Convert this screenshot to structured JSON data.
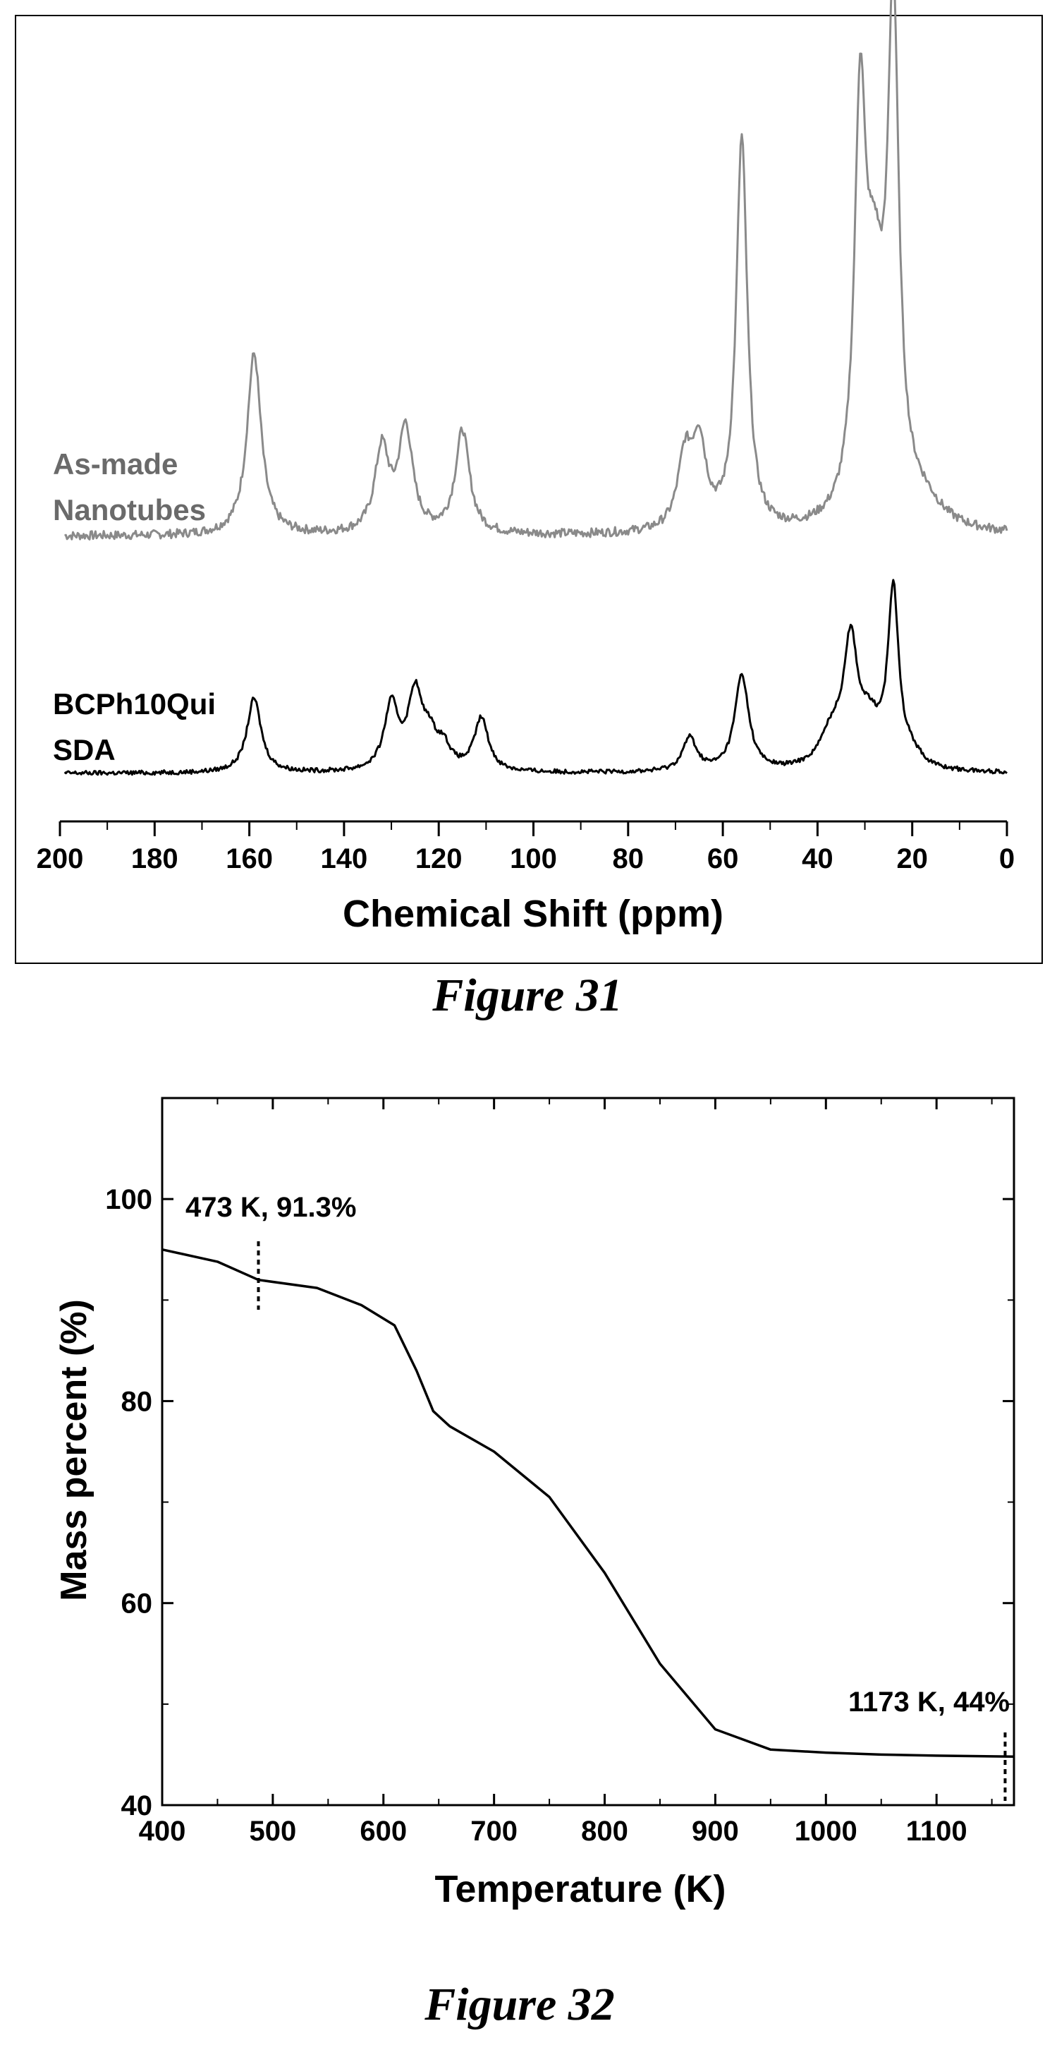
{
  "charts": {
    "nmr": {
      "xlabel": "Chemical Shift (ppm)",
      "caption": "Figure 31"
    },
    "tga": {
      "xlabel": "Temperature (K)",
      "ylabel": "Mass percent (%)",
      "caption": "Figure 32",
      "annotations": [
        {
          "text": "473 K, 91.3%",
          "x": 487
        },
        {
          "text": "1173 K, 44%",
          "x": 1162
        }
      ]
    }
  },
  "chart_data": [
    {
      "type": "line",
      "title": "",
      "xlabel": "Chemical Shift (ppm)",
      "ylabel": "",
      "xlim": [
        200,
        0
      ],
      "x_reversed": true,
      "xticks": [
        200,
        180,
        160,
        140,
        120,
        100,
        80,
        60,
        40,
        20,
        0
      ],
      "grid": false,
      "frame": true,
      "series": [
        {
          "name": "As-made Nanotubes",
          "color": "#8a8a8a",
          "peaks": [
            {
              "ppm": 159,
              "height": 0.37
            },
            {
              "ppm": 132,
              "height": 0.17
            },
            {
              "ppm": 127,
              "height": 0.21
            },
            {
              "ppm": 115,
              "height": 0.21
            },
            {
              "ppm": 68,
              "height": 0.14
            },
            {
              "ppm": 65,
              "height": 0.17
            },
            {
              "ppm": 56,
              "height": 0.8
            },
            {
              "ppm": 31,
              "height": 0.77
            },
            {
              "ppm": 24,
              "height": 1.0
            }
          ]
        },
        {
          "name": "BCPh10Qui SDA",
          "color": "#000000",
          "peaks": [
            {
              "ppm": 159,
              "height": 0.31
            },
            {
              "ppm": 130,
              "height": 0.27
            },
            {
              "ppm": 125,
              "height": 0.31
            },
            {
              "ppm": 122,
              "height": 0.12
            },
            {
              "ppm": 119,
              "height": 0.09
            },
            {
              "ppm": 111,
              "height": 0.22
            },
            {
              "ppm": 67,
              "height": 0.14
            },
            {
              "ppm": 56,
              "height": 0.4
            },
            {
              "ppm": 33,
              "height": 0.5
            },
            {
              "ppm": 24,
              "height": 0.73
            }
          ]
        }
      ]
    },
    {
      "type": "line",
      "title": "",
      "xlabel": "Temperature (K)",
      "ylabel": "Mass percent (%)",
      "xlim": [
        400,
        1170
      ],
      "ylim": [
        40,
        110
      ],
      "xticks": [
        400,
        500,
        600,
        700,
        800,
        900,
        1000,
        1100
      ],
      "yticks": [
        40,
        60,
        80,
        100
      ],
      "grid": false,
      "series": [
        {
          "name": "",
          "color": "#000000",
          "x": [
            400,
            450,
            487,
            540,
            580,
            610,
            630,
            645,
            660,
            700,
            750,
            800,
            850,
            900,
            950,
            1000,
            1050,
            1100,
            1170
          ],
          "y": [
            95.0,
            93.8,
            92.0,
            91.2,
            89.5,
            87.5,
            83.0,
            79.0,
            77.5,
            75.0,
            70.5,
            63.0,
            54.0,
            47.5,
            45.5,
            45.2,
            45.0,
            44.9,
            44.8
          ]
        }
      ],
      "annotations": [
        {
          "text": "473 K, 91.3%",
          "x": 487
        },
        {
          "text": "1173 K, 44%",
          "x": 1162
        }
      ]
    }
  ]
}
